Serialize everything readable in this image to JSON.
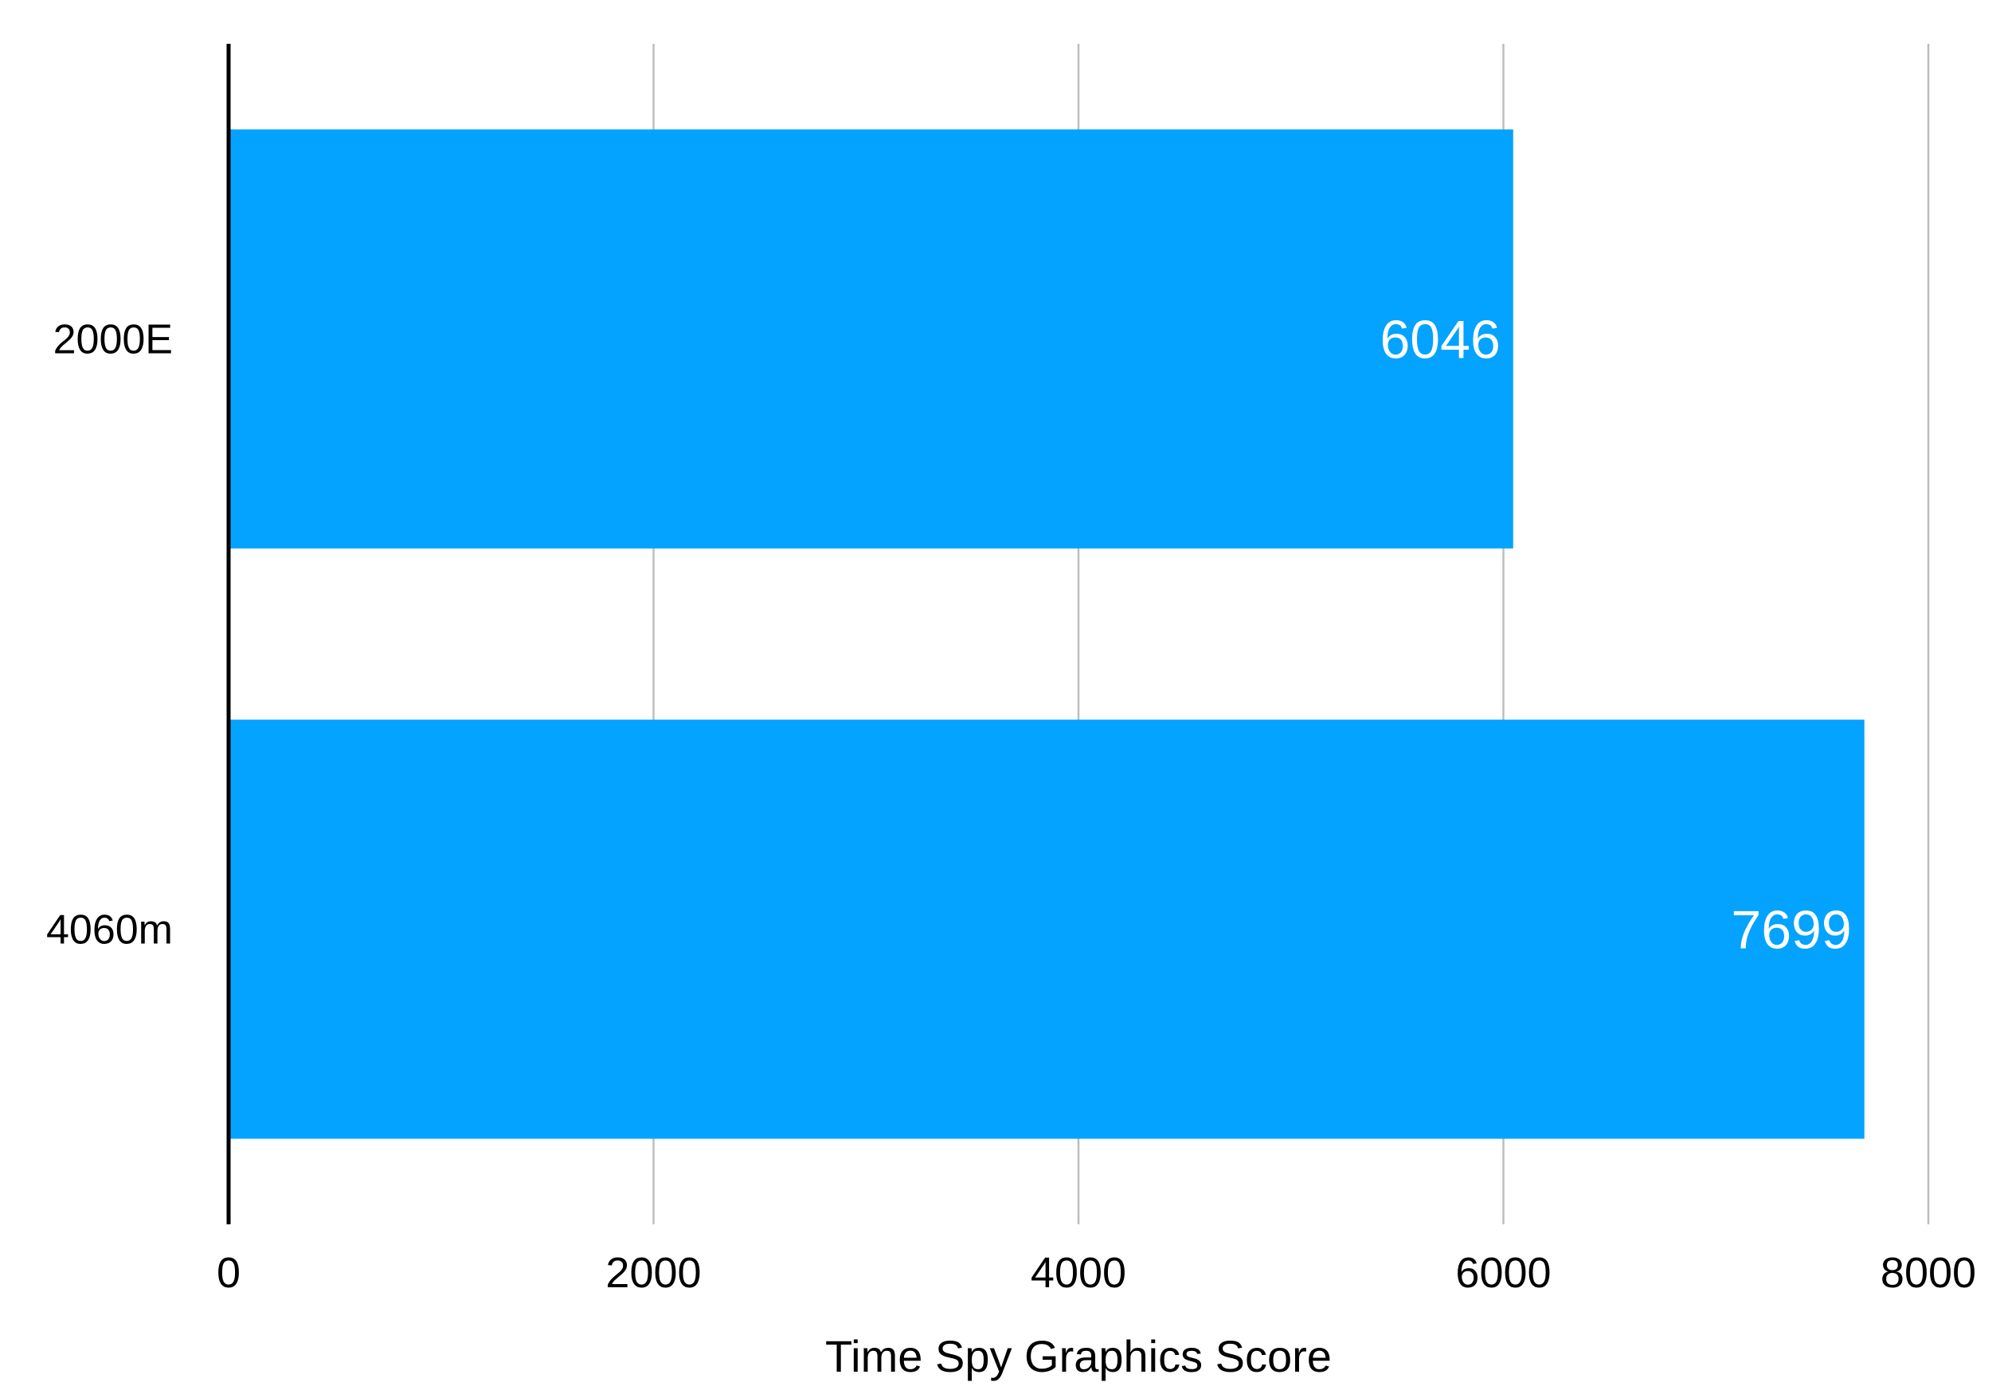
{
  "chart_data": {
    "type": "bar",
    "orientation": "horizontal",
    "categories": [
      "2000E",
      "4060m"
    ],
    "values": [
      6046,
      7699
    ],
    "value_labels": [
      "6046",
      "7699"
    ],
    "xlabel": "Time Spy Graphics Score",
    "ylabel": "",
    "xlim": [
      0,
      8000
    ],
    "x_ticks": [
      0,
      2000,
      4000,
      6000,
      8000
    ],
    "x_tick_labels": [
      "0",
      "2000",
      "4000",
      "6000",
      "8000"
    ],
    "grid": "vertical",
    "legend": "none",
    "bar_color": "#03a3ff"
  }
}
